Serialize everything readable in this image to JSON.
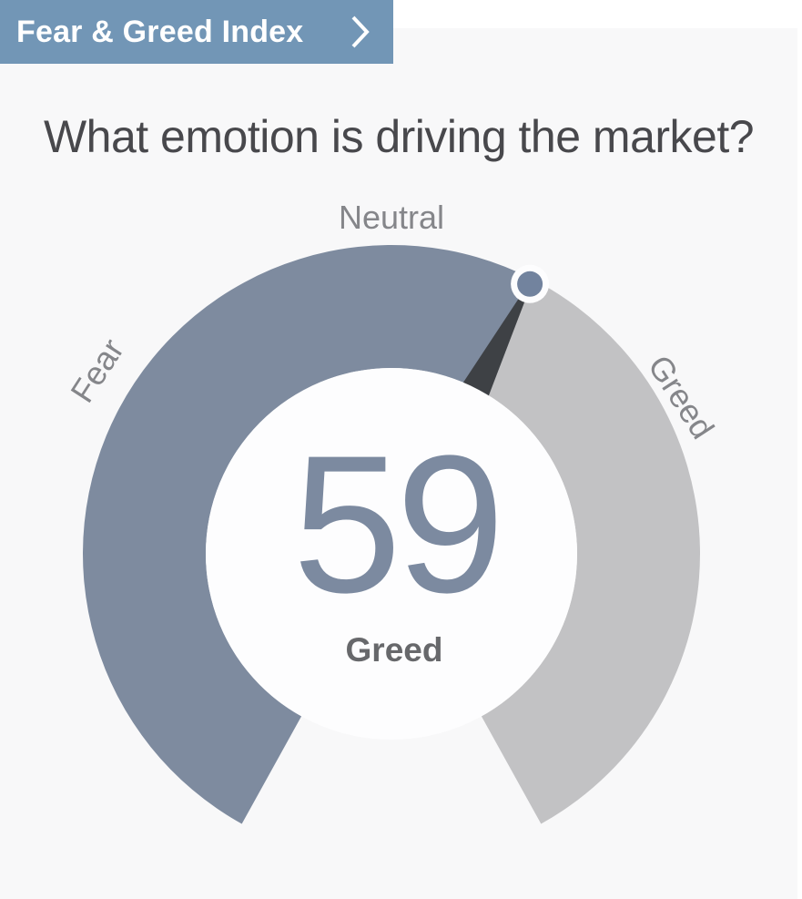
{
  "header": {
    "label": "Fear & Greed Index",
    "chevron_icon": "chevron-right"
  },
  "question": "What emotion is driving the market?",
  "chart_data": {
    "type": "gauge",
    "title": "What emotion is driving the market?",
    "value": 59,
    "value_label": "Greed",
    "min": 0,
    "max": 100,
    "scale_labels": [
      {
        "label": "Fear",
        "position": "left"
      },
      {
        "label": "Neutral",
        "position": "top"
      },
      {
        "label": "Greed",
        "position": "right"
      }
    ],
    "layout_hints": {
      "arc_start_deg": 241,
      "arc_end_deg": -61,
      "open_side": "bottom"
    },
    "colors": {
      "filled_arc": "#7e8b9f",
      "empty_arc": "#c2c2c4",
      "needle": "#3e4145",
      "knob": "#72839e",
      "knob_ring": "#fdfdfe",
      "inner_disc": "#fdfdfe",
      "value_text": "#7c8aa0",
      "value_label_text": "#67686b",
      "scale_label_text": "#85868a",
      "banner_bg": "#7296b6",
      "banner_text": "#ffffff",
      "card_bg": "#f8f8f9",
      "page_bg": "#ffffff",
      "question_text": "#48484c"
    }
  }
}
